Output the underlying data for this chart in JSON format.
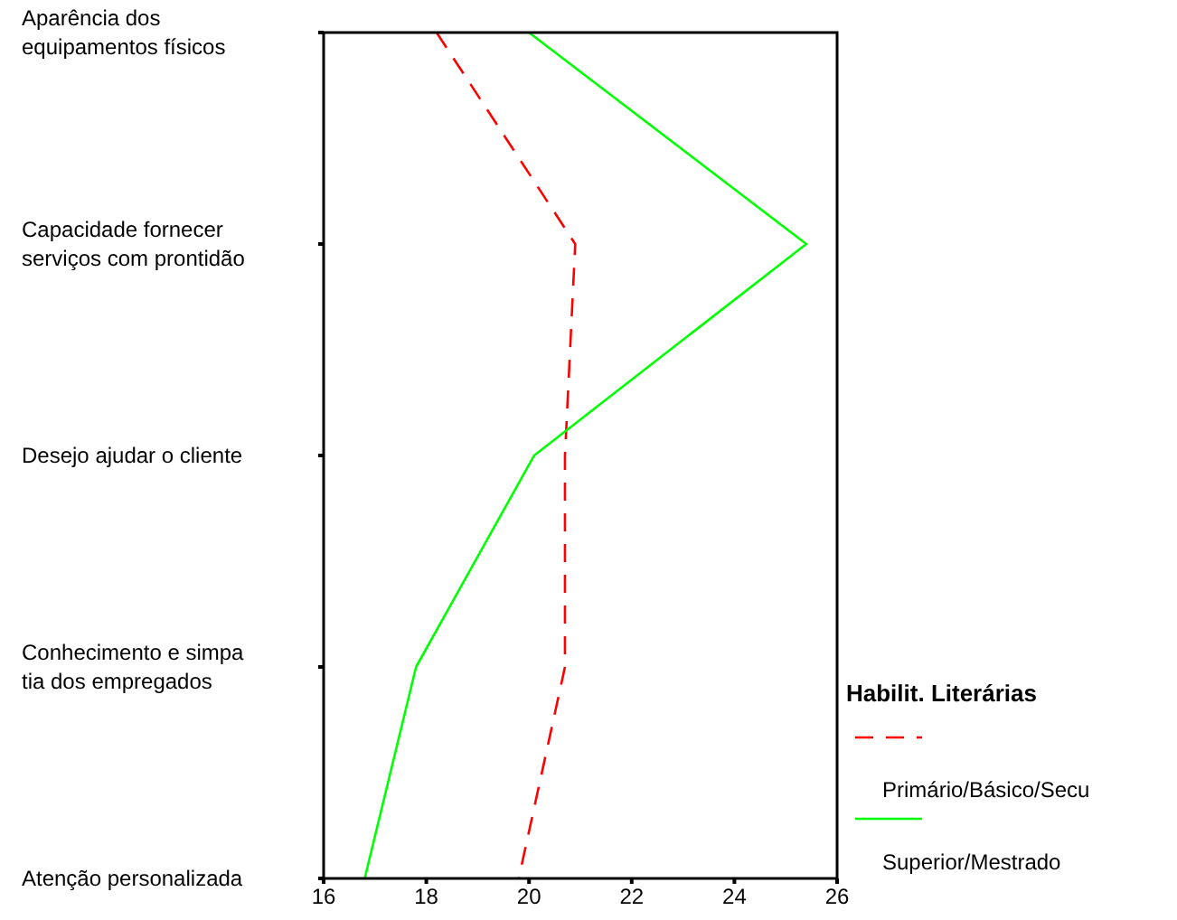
{
  "chart_data": {
    "type": "line",
    "orientation": "horizontal",
    "categories": [
      "Aparência dos\nequipamentos físicos",
      "Capacidade fornecer\nserviços com prontidão",
      "Desejo ajudar o cliente",
      "Conhecimento e simpa\ntia dos empregados",
      "Atenção personalizada"
    ],
    "xlim": [
      16,
      26
    ],
    "xticks": [
      16,
      18,
      20,
      22,
      24,
      26
    ],
    "legend_title": "Habilit. Literárias",
    "legend": "bottom right",
    "grid": false,
    "series": [
      {
        "name": "Primário/Básico/Secu",
        "color": "#ff0000",
        "line_style": "dashed",
        "values": [
          18.2,
          20.9,
          20.7,
          20.7,
          19.8
        ]
      },
      {
        "name": "Superior/Mestrado",
        "color": "#00ff00",
        "line_style": "solid",
        "values": [
          20,
          25.4,
          20.1,
          17.8,
          16.8
        ]
      }
    ]
  }
}
